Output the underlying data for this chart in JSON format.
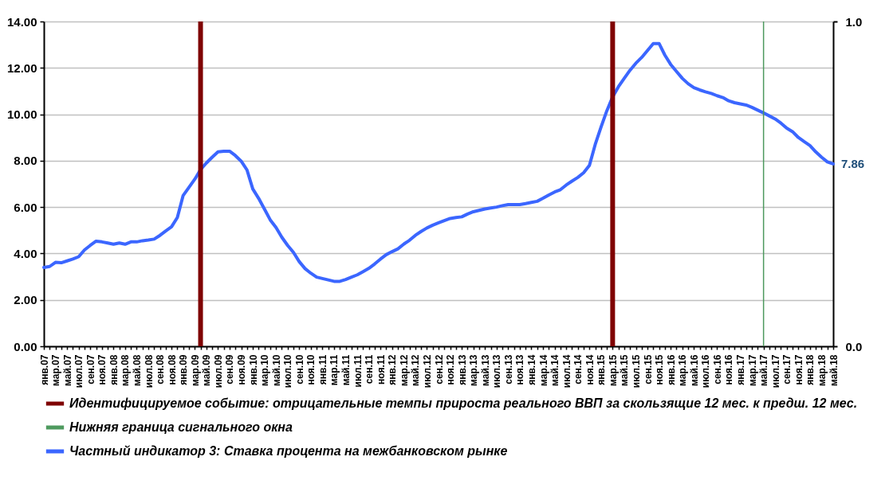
{
  "chart_data": {
    "type": "line",
    "categories": [
      "янв.07",
      null,
      "мар.07",
      null,
      "май.07",
      null,
      "июл.07",
      null,
      "сен.07",
      null,
      "ноя.07",
      null,
      "янв.08",
      null,
      "мар.08",
      null,
      "май.08",
      null,
      "июл.08",
      null,
      "сен.08",
      null,
      "ноя.08",
      null,
      "янв.09",
      null,
      "мар.09",
      null,
      "май.09",
      null,
      "июл.09",
      null,
      "сен.09",
      null,
      "ноя.09",
      null,
      "янв.10",
      null,
      "мар.10",
      null,
      "май.10",
      null,
      "июл.10",
      null,
      "сен.10",
      null,
      "ноя.10",
      null,
      "янв.11",
      null,
      "мар.11",
      null,
      "май.11",
      null,
      "июл.11",
      null,
      "сен.11",
      null,
      "ноя.11",
      null,
      "янв.12",
      null,
      "мар.12",
      null,
      "май.12",
      null,
      "июл.12",
      null,
      "сен.12",
      null,
      "ноя.12",
      null,
      "янв.13",
      null,
      "мар.13",
      null,
      "май.13",
      null,
      "июл.13",
      null,
      "сен.13",
      null,
      "ноя.13",
      null,
      "янв.14",
      null,
      "мар.14",
      null,
      "май.14",
      null,
      "июл.14",
      null,
      "сен.14",
      null,
      "ноя.14",
      null,
      "янв.15",
      null,
      "мар.15",
      null,
      "май.15",
      null,
      "июл.15",
      null,
      "сен.15",
      null,
      "ноя.15",
      null,
      "янв.16",
      null,
      "мар.16",
      null,
      "май.16",
      null,
      "июл.16",
      null,
      "сен.16",
      null,
      "ноя.16",
      null,
      "янв.17",
      null,
      "мар.17",
      null,
      "май.17",
      null,
      "июл.17",
      null,
      "сен.17",
      null,
      "ноя.17",
      null,
      "янв.18",
      null,
      "мар.18",
      null,
      "май.18"
    ],
    "series": [
      {
        "name": "Идентифицируемое событие: отрицательные темпы прироста реального ВВП за скользящие 12 мес. к предш. 12 мес.",
        "type": "bar",
        "axis": "y2",
        "color": "#7f0000",
        "values": [
          null,
          null,
          null,
          null,
          null,
          null,
          null,
          null,
          null,
          null,
          null,
          null,
          null,
          null,
          null,
          null,
          null,
          null,
          null,
          null,
          null,
          null,
          null,
          null,
          null,
          null,
          null,
          1,
          null,
          null,
          null,
          null,
          null,
          null,
          null,
          null,
          null,
          null,
          null,
          null,
          null,
          null,
          null,
          null,
          null,
          null,
          null,
          null,
          null,
          null,
          null,
          null,
          null,
          null,
          null,
          null,
          null,
          null,
          null,
          null,
          null,
          null,
          null,
          null,
          null,
          null,
          null,
          null,
          null,
          null,
          null,
          null,
          null,
          null,
          null,
          null,
          null,
          null,
          null,
          null,
          null,
          null,
          null,
          null,
          null,
          null,
          null,
          null,
          null,
          null,
          null,
          null,
          null,
          null,
          null,
          null,
          null,
          null,
          1,
          null,
          null,
          null,
          null,
          null,
          null,
          null,
          null,
          null,
          null,
          null,
          null,
          null,
          null,
          null,
          null,
          null,
          null,
          null,
          null,
          null,
          null,
          null,
          null,
          null,
          null,
          null,
          null,
          null,
          null,
          null,
          null,
          null,
          null,
          null,
          null,
          null,
          null
        ]
      },
      {
        "name": "Нижняя граница сигнального окна",
        "type": "bar",
        "axis": "y2",
        "color": "#4e9a5f",
        "values": [
          null,
          null,
          null,
          null,
          null,
          null,
          null,
          null,
          null,
          null,
          null,
          null,
          null,
          null,
          null,
          null,
          null,
          null,
          null,
          null,
          null,
          null,
          null,
          null,
          null,
          null,
          null,
          null,
          null,
          null,
          null,
          null,
          null,
          null,
          null,
          null,
          null,
          null,
          null,
          null,
          null,
          null,
          null,
          null,
          null,
          null,
          null,
          null,
          null,
          null,
          null,
          null,
          null,
          null,
          null,
          null,
          null,
          null,
          null,
          null,
          null,
          null,
          null,
          null,
          null,
          null,
          null,
          null,
          null,
          null,
          null,
          null,
          null,
          null,
          null,
          null,
          null,
          null,
          null,
          null,
          null,
          null,
          null,
          null,
          null,
          null,
          null,
          null,
          null,
          null,
          null,
          null,
          null,
          null,
          null,
          null,
          null,
          null,
          null,
          null,
          null,
          null,
          null,
          null,
          null,
          null,
          null,
          null,
          null,
          null,
          null,
          null,
          null,
          null,
          null,
          null,
          null,
          null,
          null,
          null,
          null,
          null,
          null,
          null,
          1,
          null,
          null,
          null,
          null,
          null,
          null,
          null,
          null,
          null,
          null,
          null,
          null
        ]
      },
      {
        "name": "Частный индикатор 3: Ставка процента на межбанковском рынке",
        "color": "#3b66ff",
        "values": [
          3.4,
          3.44,
          3.62,
          3.6,
          3.68,
          3.76,
          3.86,
          4.15,
          4.35,
          4.53,
          4.5,
          4.45,
          4.4,
          4.45,
          4.4,
          4.5,
          4.5,
          4.55,
          4.58,
          4.62,
          4.78,
          4.97,
          5.15,
          5.55,
          6.5,
          6.85,
          7.2,
          7.62,
          7.9,
          8.15,
          8.38,
          8.41,
          8.41,
          8.22,
          7.98,
          7.6,
          6.78,
          6.38,
          5.92,
          5.45,
          5.12,
          4.7,
          4.35,
          4.05,
          3.65,
          3.35,
          3.15,
          2.98,
          2.92,
          2.86,
          2.8,
          2.8,
          2.88,
          2.98,
          3.08,
          3.22,
          3.36,
          3.55,
          3.76,
          3.95,
          4.08,
          4.2,
          4.4,
          4.57,
          4.78,
          4.95,
          5.1,
          5.22,
          5.32,
          5.42,
          5.51,
          5.55,
          5.58,
          5.7,
          5.8,
          5.86,
          5.92,
          5.96,
          6.0,
          6.06,
          6.11,
          6.11,
          6.11,
          6.15,
          6.2,
          6.25,
          6.38,
          6.52,
          6.65,
          6.75,
          6.95,
          7.12,
          7.28,
          7.48,
          7.8,
          8.7,
          9.45,
          10.15,
          10.75,
          11.19,
          11.55,
          11.9,
          12.2,
          12.45,
          12.75,
          13.05,
          13.05,
          12.55,
          12.15,
          11.85,
          11.55,
          11.32,
          11.15,
          11.05,
          10.97,
          10.9,
          10.8,
          10.72,
          10.58,
          10.5,
          10.45,
          10.4,
          10.3,
          10.18,
          10.06,
          9.93,
          9.8,
          9.62,
          9.4,
          9.25,
          9.0,
          8.82,
          8.65,
          8.38,
          8.15,
          7.95,
          7.86
        ]
      }
    ],
    "ylim": [
      0,
      14
    ],
    "yticks": [
      {
        "value": 0,
        "label": "0.00"
      },
      {
        "value": 2,
        "label": "2.00"
      },
      {
        "value": 4,
        "label": "4.00"
      },
      {
        "value": 6,
        "label": "6.00"
      },
      {
        "value": 8,
        "label": "8.00"
      },
      {
        "value": 10,
        "label": "10.00"
      },
      {
        "value": 12,
        "label": "12.00"
      },
      {
        "value": 14,
        "label": "14.00"
      }
    ],
    "y2lim": [
      0,
      1
    ],
    "y2ticks": [
      {
        "value": 0,
        "label": "0.0"
      },
      {
        "value": 1,
        "label": "1.0"
      }
    ],
    "annotations": [
      {
        "text": "7.86",
        "x": "май.18",
        "y": 7.86
      }
    ],
    "grid": "y",
    "legend": "bottom"
  }
}
